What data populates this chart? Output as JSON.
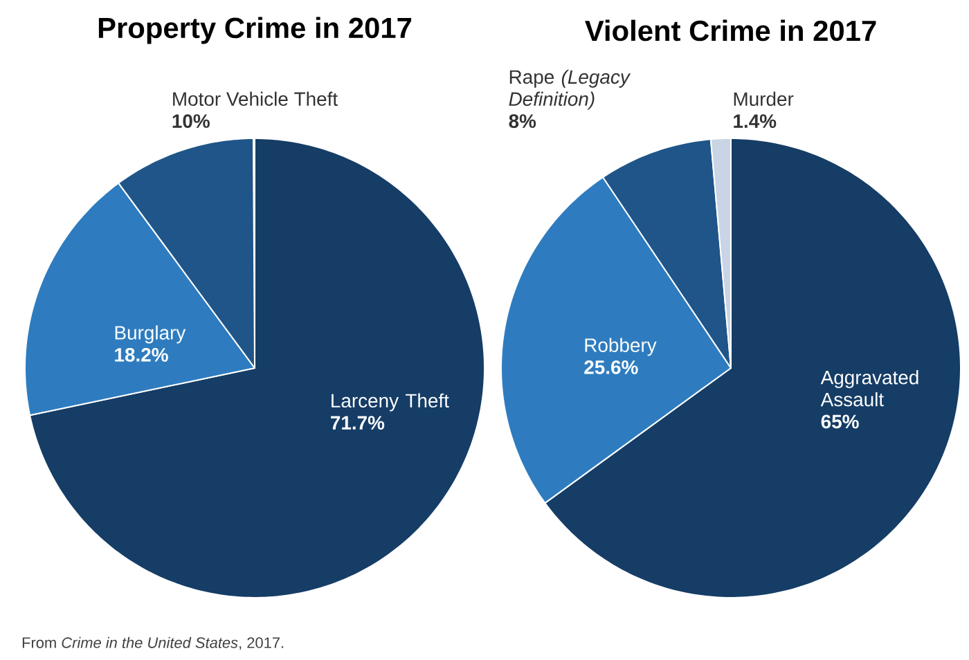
{
  "chart_data": [
    {
      "type": "pie",
      "title": "Property Crime in 2017",
      "categories": [
        "Larceny Theft",
        "Burglary",
        "Motor Vehicle Theft"
      ],
      "values": [
        71.7,
        18.2,
        10
      ],
      "value_labels": [
        "71.7%",
        "18.2%",
        "10%"
      ],
      "colors": [
        "#153d66",
        "#2e7cbf",
        "#1f5588"
      ],
      "annotations": [
        "From *Crime in the United States*, 2017."
      ]
    },
    {
      "type": "pie",
      "title": "Violent Crime in 2017",
      "categories": [
        "Aggravated Assault",
        "Robbery",
        "Rape *(Legacy Definition)*",
        "Murder"
      ],
      "values": [
        65,
        25.6,
        8,
        1.4
      ],
      "value_labels": [
        "65%",
        "25.6%",
        "8%",
        "1.4%"
      ],
      "colors": [
        "#153d66",
        "#2e7cbf",
        "#1f5588",
        "#c9d5e4"
      ]
    }
  ]
}
